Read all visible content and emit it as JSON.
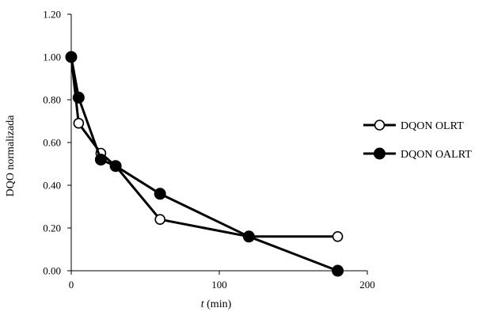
{
  "chart_data": {
    "type": "line",
    "title": "",
    "xlabel_italic": "t",
    "xlabel_rest": " (min)",
    "ylabel": "DQO normalizada",
    "xlim": [
      0,
      200
    ],
    "ylim": [
      0,
      1.2
    ],
    "xticks": [
      0,
      100,
      200
    ],
    "xtick_labels": [
      "0",
      "100",
      "200"
    ],
    "yticks": [
      0,
      0.2,
      0.4,
      0.6,
      0.8,
      1.0,
      1.2
    ],
    "ytick_labels": [
      "0.00",
      "0.20",
      "0.40",
      "0.60",
      "0.80",
      "1.00",
      "1.20"
    ],
    "grid": false,
    "legend_position": "right",
    "series": [
      {
        "name": "DQON OLRT",
        "marker": "open-circle",
        "color": "#000000",
        "x": [
          0,
          5,
          20,
          30,
          60,
          120,
          180
        ],
        "y": [
          1.0,
          0.69,
          0.55,
          0.49,
          0.24,
          0.16,
          0.16
        ]
      },
      {
        "name": "DQON OALRT",
        "marker": "filled-circle",
        "color": "#000000",
        "x": [
          0,
          5,
          20,
          30,
          60,
          120,
          180
        ],
        "y": [
          1.0,
          0.81,
          0.52,
          0.49,
          0.36,
          0.16,
          0.0
        ]
      }
    ]
  }
}
